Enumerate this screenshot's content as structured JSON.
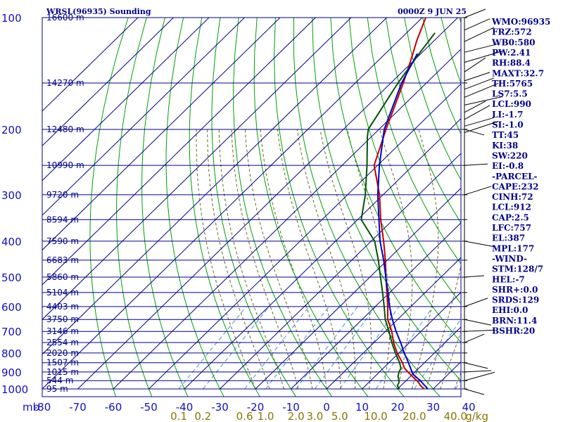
{
  "chart_data": {
    "type": "line",
    "title": "WRSL(96935) Sounding",
    "time_label": "0000Z  9 JUN 25",
    "ylabel": "mb",
    "pressure_ticks": [
      "100",
      "200",
      "300",
      "400",
      "500",
      "600",
      "700",
      "800",
      "900",
      "1000"
    ],
    "pressure_values": [
      100,
      200,
      300,
      400,
      500,
      600,
      700,
      800,
      900,
      1000
    ],
    "height_labels": [
      {
        "p": 100,
        "label": "16600 m"
      },
      {
        "p": 150,
        "label": "14270 m"
      },
      {
        "p": 200,
        "label": "12480 m"
      },
      {
        "p": 250,
        "label": "10990 m"
      },
      {
        "p": 300,
        "label": "9720 m"
      },
      {
        "p": 350,
        "label": "8594 m"
      },
      {
        "p": 400,
        "label": "7590 m"
      },
      {
        "p": 450,
        "label": "6683 m"
      },
      {
        "p": 500,
        "label": "5860 m"
      },
      {
        "p": 550,
        "label": "5104 m"
      },
      {
        "p": 600,
        "label": "4403 m"
      },
      {
        "p": 650,
        "label": "3750 m"
      },
      {
        "p": 700,
        "label": "3146 m"
      },
      {
        "p": 750,
        "label": "2554 m"
      },
      {
        "p": 800,
        "label": "2020 m"
      },
      {
        "p": 850,
        "label": "1507 m"
      },
      {
        "p": 900,
        "label": "1015 m"
      },
      {
        "p": 950,
        "label": "544 m"
      },
      {
        "p": 1000,
        "label": "95 m"
      }
    ],
    "temperature_ticks": [
      "-80",
      "-70",
      "-60",
      "-50",
      "-40",
      "-30",
      "-20",
      "-10",
      "0",
      "10",
      "20",
      "30",
      "40"
    ],
    "temperature_values": [
      -80,
      -70,
      -60,
      -50,
      -40,
      -30,
      -20,
      -10,
      0,
      10,
      20,
      30,
      40
    ],
    "mixing_ratio_ticks": [
      "0.1",
      "0.2",
      "0.6",
      "1.0",
      "2.0",
      "3.0",
      "5.0",
      "10.0",
      "20.0",
      "40.0"
    ],
    "mixing_ratio_unit": "g/kg",
    "colors": {
      "isobar": "#00008b",
      "isotherm": "#00008b",
      "dry_adiabat": "#00a000",
      "moist_adiabat": "#6a6a20",
      "mixing_ratio": "#4a90d0",
      "temperature": "#c00000",
      "dewpoint": "#005500",
      "parcel": "#0000cc"
    },
    "series": [
      {
        "name": "Temperature",
        "points": [
          [
            1000,
            27.5
          ],
          [
            980,
            25.5
          ],
          [
            960,
            24.0
          ],
          [
            950,
            23.0
          ],
          [
            925,
            20.5
          ],
          [
            900,
            18.0
          ],
          [
            880,
            16.0
          ],
          [
            850,
            13.8
          ],
          [
            800,
            9.5
          ],
          [
            750,
            5.5
          ],
          [
            700,
            1.8
          ],
          [
            650,
            -2.8
          ],
          [
            600,
            -6.5
          ],
          [
            550,
            -10.8
          ],
          [
            500,
            -15.5
          ],
          [
            450,
            -20.5
          ],
          [
            400,
            -26.5
          ],
          [
            350,
            -33.5
          ],
          [
            300,
            -41.0
          ],
          [
            250,
            -51.0
          ],
          [
            200,
            -58.0
          ],
          [
            150,
            -66.5
          ],
          [
            130,
            -71.0
          ],
          [
            115,
            -75.0
          ],
          [
            100,
            -79.0
          ]
        ]
      },
      {
        "name": "Dewpoint",
        "points": [
          [
            1000,
            20.5
          ],
          [
            980,
            19.0
          ],
          [
            960,
            18.5
          ],
          [
            950,
            18.0
          ],
          [
            925,
            16.5
          ],
          [
            900,
            15.5
          ],
          [
            880,
            15.0
          ],
          [
            850,
            13.0
          ],
          [
            800,
            9.0
          ],
          [
            750,
            5.0
          ],
          [
            700,
            1.0
          ],
          [
            650,
            -3.5
          ],
          [
            600,
            -7.5
          ],
          [
            550,
            -12.0
          ],
          [
            500,
            -17.0
          ],
          [
            450,
            -22.5
          ],
          [
            400,
            -29.0
          ],
          [
            350,
            -39.0
          ],
          [
            300,
            -45.0
          ],
          [
            250,
            -53.0
          ],
          [
            210,
            -61.0
          ],
          [
            200,
            -63.0
          ],
          [
            150,
            -68.0
          ],
          [
            125,
            -70.5
          ],
          [
            110,
            -72.0
          ]
        ]
      },
      {
        "name": "Parcel",
        "points": [
          [
            1000,
            28.5
          ],
          [
            950,
            24.0
          ],
          [
            912,
            20.0
          ],
          [
            850,
            15.5
          ],
          [
            800,
            11.5
          ],
          [
            750,
            7.5
          ],
          [
            700,
            3.0
          ],
          [
            650,
            -1.5
          ],
          [
            600,
            -6.0
          ],
          [
            550,
            -10.5
          ],
          [
            500,
            -15.5
          ],
          [
            450,
            -21.0
          ],
          [
            400,
            -27.5
          ],
          [
            350,
            -34.0
          ],
          [
            300,
            -41.5
          ],
          [
            250,
            -49.5
          ],
          [
            200,
            -58.5
          ],
          [
            150,
            -67.0
          ],
          [
            125,
            -71.0
          ]
        ]
      }
    ],
    "grid": true,
    "legend": "none",
    "indices": [
      "WMO:96935",
      "FRZ:572",
      "WB0:580",
      "PW:2.41",
      "RH:88.4",
      "MAXT:32.7",
      "TH:5765",
      "LS7:5.5",
      "LCL:990",
      "LI:-1.7",
      "SI:-1.0",
      "TT:45",
      "KI:38",
      "SW:220",
      "EI:-0.8",
      "-PARCEL-",
      "CAPE:232",
      "CINH:72",
      "LCL:912",
      "CAP:2.5",
      "LFC:757",
      "EL:387",
      "MPL:177",
      "-WIND-",
      "STM:128/7",
      "HEL:-7",
      "SHR+:0.0",
      "SRDS:129",
      "EHI:0.0",
      "BRN:11.4",
      "BSHR:20"
    ]
  }
}
